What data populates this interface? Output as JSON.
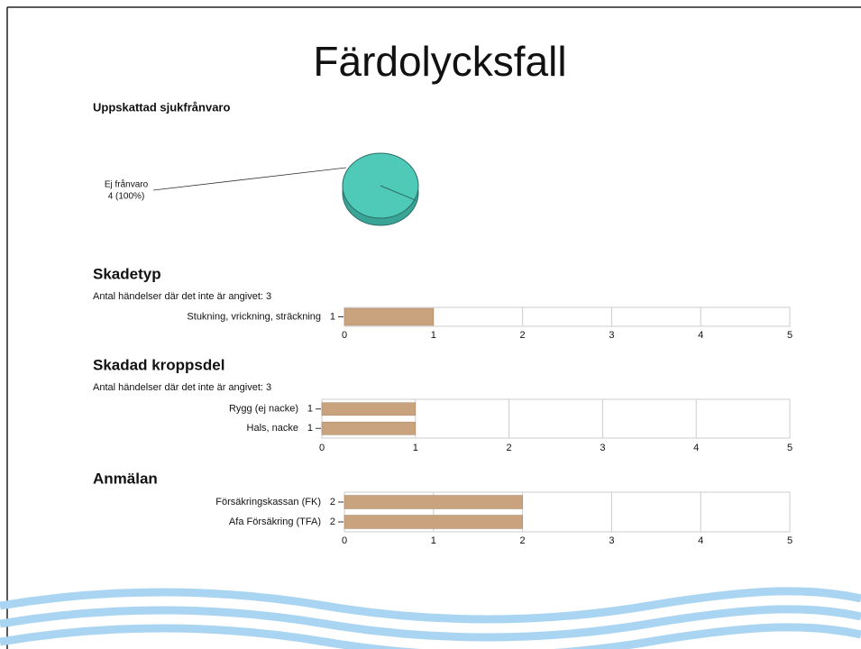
{
  "title": "Färdolycksfall",
  "chart_data": [
    {
      "type": "pie",
      "title": "Uppskattad sjukfrånvaro",
      "categories": [
        "Ej frånvaro"
      ],
      "values": [
        4
      ],
      "value_labels": [
        "4 (100%)"
      ],
      "colors": [
        "#4fc9b8"
      ]
    },
    {
      "type": "hbar",
      "title": "Skadetyp",
      "subtitle": "Antal händelser där det inte är angivet: 3",
      "categories": [
        "Stukning, vrickning, sträckning"
      ],
      "values": [
        1
      ],
      "color": "#c9a27e",
      "xlim": [
        0,
        5
      ],
      "xticks": [
        0,
        1,
        2,
        3,
        4,
        5
      ],
      "grid": true
    },
    {
      "type": "hbar",
      "title": "Skadad kroppsdel",
      "subtitle": "Antal händelser där det inte är angivet: 3",
      "categories": [
        "Rygg (ej nacke)",
        "Hals, nacke"
      ],
      "values": [
        1,
        1
      ],
      "color": "#c9a27e",
      "xlim": [
        0,
        5
      ],
      "xticks": [
        0,
        1,
        2,
        3,
        4,
        5
      ],
      "grid": true
    },
    {
      "type": "hbar",
      "title": "Anmälan",
      "categories": [
        "Försäkringskassan (FK)",
        "Afa Försäkring (TFA)"
      ],
      "values": [
        2,
        2
      ],
      "color": "#c9a27e",
      "xlim": [
        0,
        5
      ],
      "xticks": [
        0,
        1,
        2,
        3,
        4,
        5
      ],
      "grid": true
    }
  ]
}
